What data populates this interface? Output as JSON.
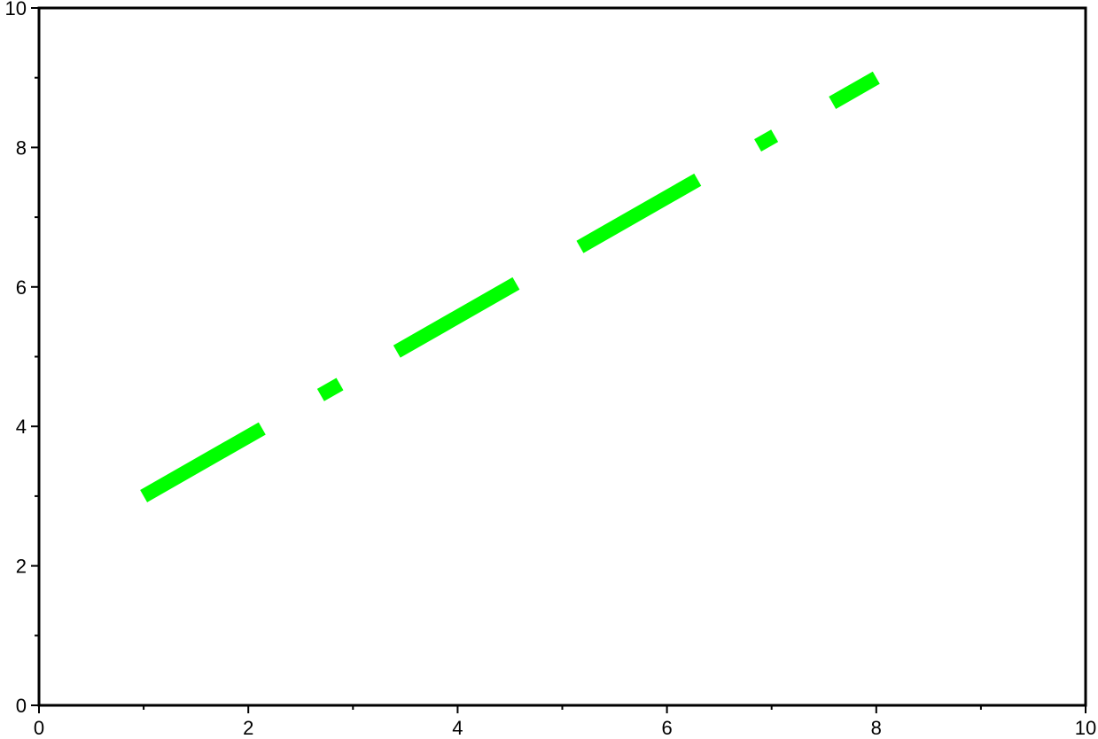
{
  "chart_data": {
    "type": "line",
    "title": "",
    "xlabel": "",
    "ylabel": "",
    "xlim": [
      0,
      10
    ],
    "ylim": [
      0,
      10
    ],
    "grid": false,
    "x_ticks": [
      "0",
      "2",
      "4",
      "6",
      "8",
      "10"
    ],
    "y_ticks": [
      "0",
      "2",
      "4",
      "6",
      "8",
      "10"
    ],
    "series": [
      {
        "x": [
          1,
          8
        ],
        "y": [
          3,
          9
        ],
        "color": "#00ff00",
        "line_style": "dash-dot"
      }
    ]
  }
}
